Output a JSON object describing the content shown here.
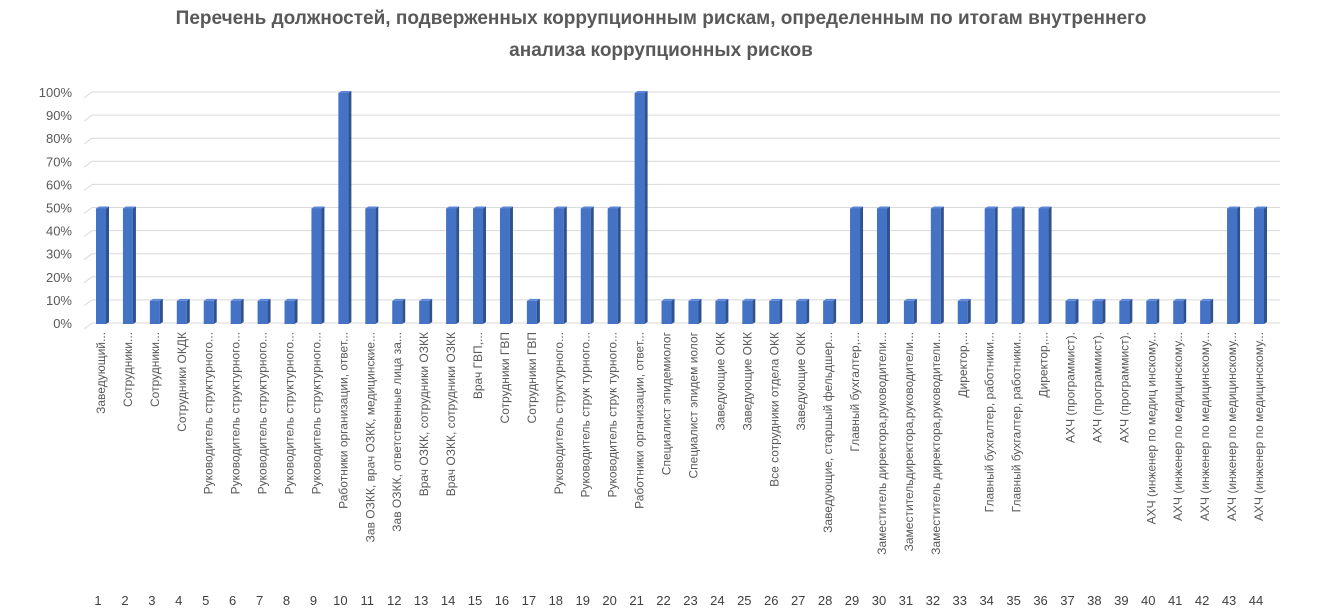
{
  "chart_data": {
    "type": "bar",
    "title_lines": [
      "Перечень должностей, подверженных коррупционным рискам, определенным по итогам  внутреннего",
      "анализа коррупционных рисков"
    ],
    "xlabel": "",
    "ylabel": "",
    "ylim": [
      0,
      100
    ],
    "yticks": [
      "0%",
      "10%",
      "20%",
      "30%",
      "40%",
      "50%",
      "60%",
      "70%",
      "80%",
      "90%",
      "100%"
    ],
    "grid": true,
    "legend": "none",
    "bar_color": "#4472C4",
    "numbers": [
      "1",
      "2",
      "3",
      "4",
      "5",
      "6",
      "7",
      "8",
      "9",
      "10",
      "11",
      "12",
      "13",
      "14",
      "15",
      "16",
      "17",
      "18",
      "19",
      "20",
      "21",
      "22",
      "23",
      "24",
      "25",
      "26",
      "27",
      "28",
      "29",
      "30",
      "31",
      "32",
      "33",
      "34",
      "35",
      "36",
      "37",
      "38",
      "39",
      "40",
      "41",
      "42",
      "43",
      "44"
    ],
    "categories": [
      "Заведующий...",
      "Сотрудники...",
      "Сотрудники...",
      "Сотрудники ОКДК",
      "Руководитель структурного...",
      "Руководитель структурного...",
      "Руководитель структурного...",
      "Руководитель структурного...",
      "Руководитель структурного...",
      "Работники организации, ответ...",
      "Зав ОЗКК, врач ОЗКК, медицинские...",
      "Зав ОЗКК, ответственные лица за...",
      "Врач ОЗКК, сотрудники ОЗКК",
      "Врач ОЗКК, сотрудники  ОЗКК",
      "Врач ГВП,...",
      "Сотрудники ГВП",
      "Сотрудники ГВП",
      "Руководитель структурного...",
      "Руководитель струк турного...",
      "Руководитель струк турного...",
      "Работники организации, ответ...",
      "Специалист эпидемиолог",
      "Специалист эпидем иолог",
      "Заведующие ОКК",
      "Заведующие ОКК",
      "Все сотрудники отдела ОКК",
      "Заведующие ОКК",
      "Заведующие, старшый фельдшер...",
      "Главный бухгалтер,...",
      "Заместитель директора,руководители...",
      "Заместительдиректора,руководители...",
      "Заместитель директора,руководители...",
      "Директор,...",
      "Главный бухгалтер, работники...",
      "Главный бухгалтер, работники...",
      "Директор,...",
      "АХЧ (программист).",
      "АХЧ (программист).",
      "АХЧ (программист).",
      "АХЧ (инженер по медиц инскому...",
      "АХЧ (инженер по медицинскому...",
      "АХЧ (инженер по медицинскому...",
      "АХЧ (инженер по медицинскому...",
      "АХЧ (инженер по медицинскому..."
    ],
    "values": [
      50,
      50,
      10,
      10,
      10,
      10,
      10,
      10,
      50,
      100,
      50,
      10,
      10,
      50,
      50,
      50,
      10,
      50,
      50,
      50,
      100,
      10,
      10,
      10,
      10,
      10,
      10,
      10,
      50,
      50,
      10,
      50,
      10,
      50,
      50,
      50,
      10,
      10,
      10,
      10,
      10,
      10,
      50,
      50
    ]
  }
}
